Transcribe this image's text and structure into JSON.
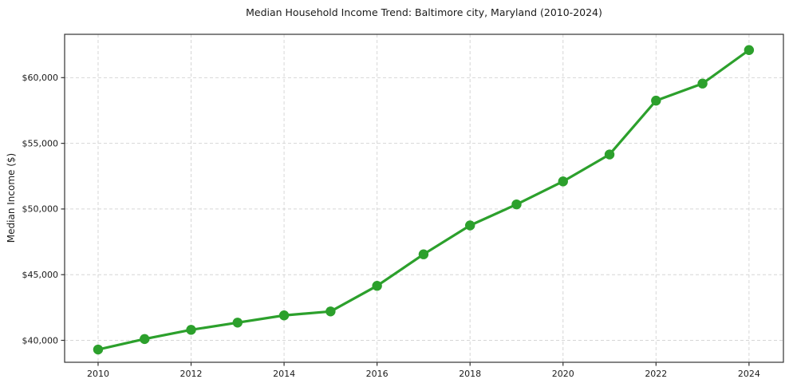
{
  "figure": {
    "title": "Median Household Income Trend: Baltimore city, Maryland (2010-2024)"
  },
  "chart_data": {
    "type": "line",
    "title": "Median Household Income Trend: Baltimore city, Maryland (2010-2024)",
    "xlabel": "",
    "ylabel": "Median Income ($)",
    "x": [
      2010,
      2011,
      2012,
      2013,
      2014,
      2015,
      2016,
      2017,
      2018,
      2019,
      2020,
      2021,
      2022,
      2023,
      2024
    ],
    "series": [
      {
        "name": "Median Household Income",
        "values": [
          39300,
          40100,
          40800,
          41350,
          41900,
          42200,
          44150,
          46550,
          48750,
          50350,
          52100,
          54150,
          58250,
          59550,
          62100
        ],
        "color": "#2ca02c"
      }
    ],
    "xticks": {
      "values": [
        2010,
        2012,
        2014,
        2016,
        2018,
        2020,
        2022,
        2024
      ],
      "labels": [
        "2010",
        "2012",
        "2014",
        "2016",
        "2018",
        "2020",
        "2022",
        "2024"
      ]
    },
    "yticks": {
      "values": [
        40000,
        45000,
        50000,
        55000,
        60000
      ],
      "labels": [
        "$40,000",
        "$45,000",
        "$50,000",
        "$55,000",
        "$60,000"
      ]
    },
    "xlim": [
      2009.28,
      2024.74
    ],
    "ylim": [
      38330,
      63300
    ],
    "grid": true,
    "legend_position": "none",
    "marker": "circle",
    "colors": {
      "line": "#2ca02c",
      "grid": "#d6d6d6",
      "spine": "#333333",
      "text": "#1a1a1a"
    }
  }
}
